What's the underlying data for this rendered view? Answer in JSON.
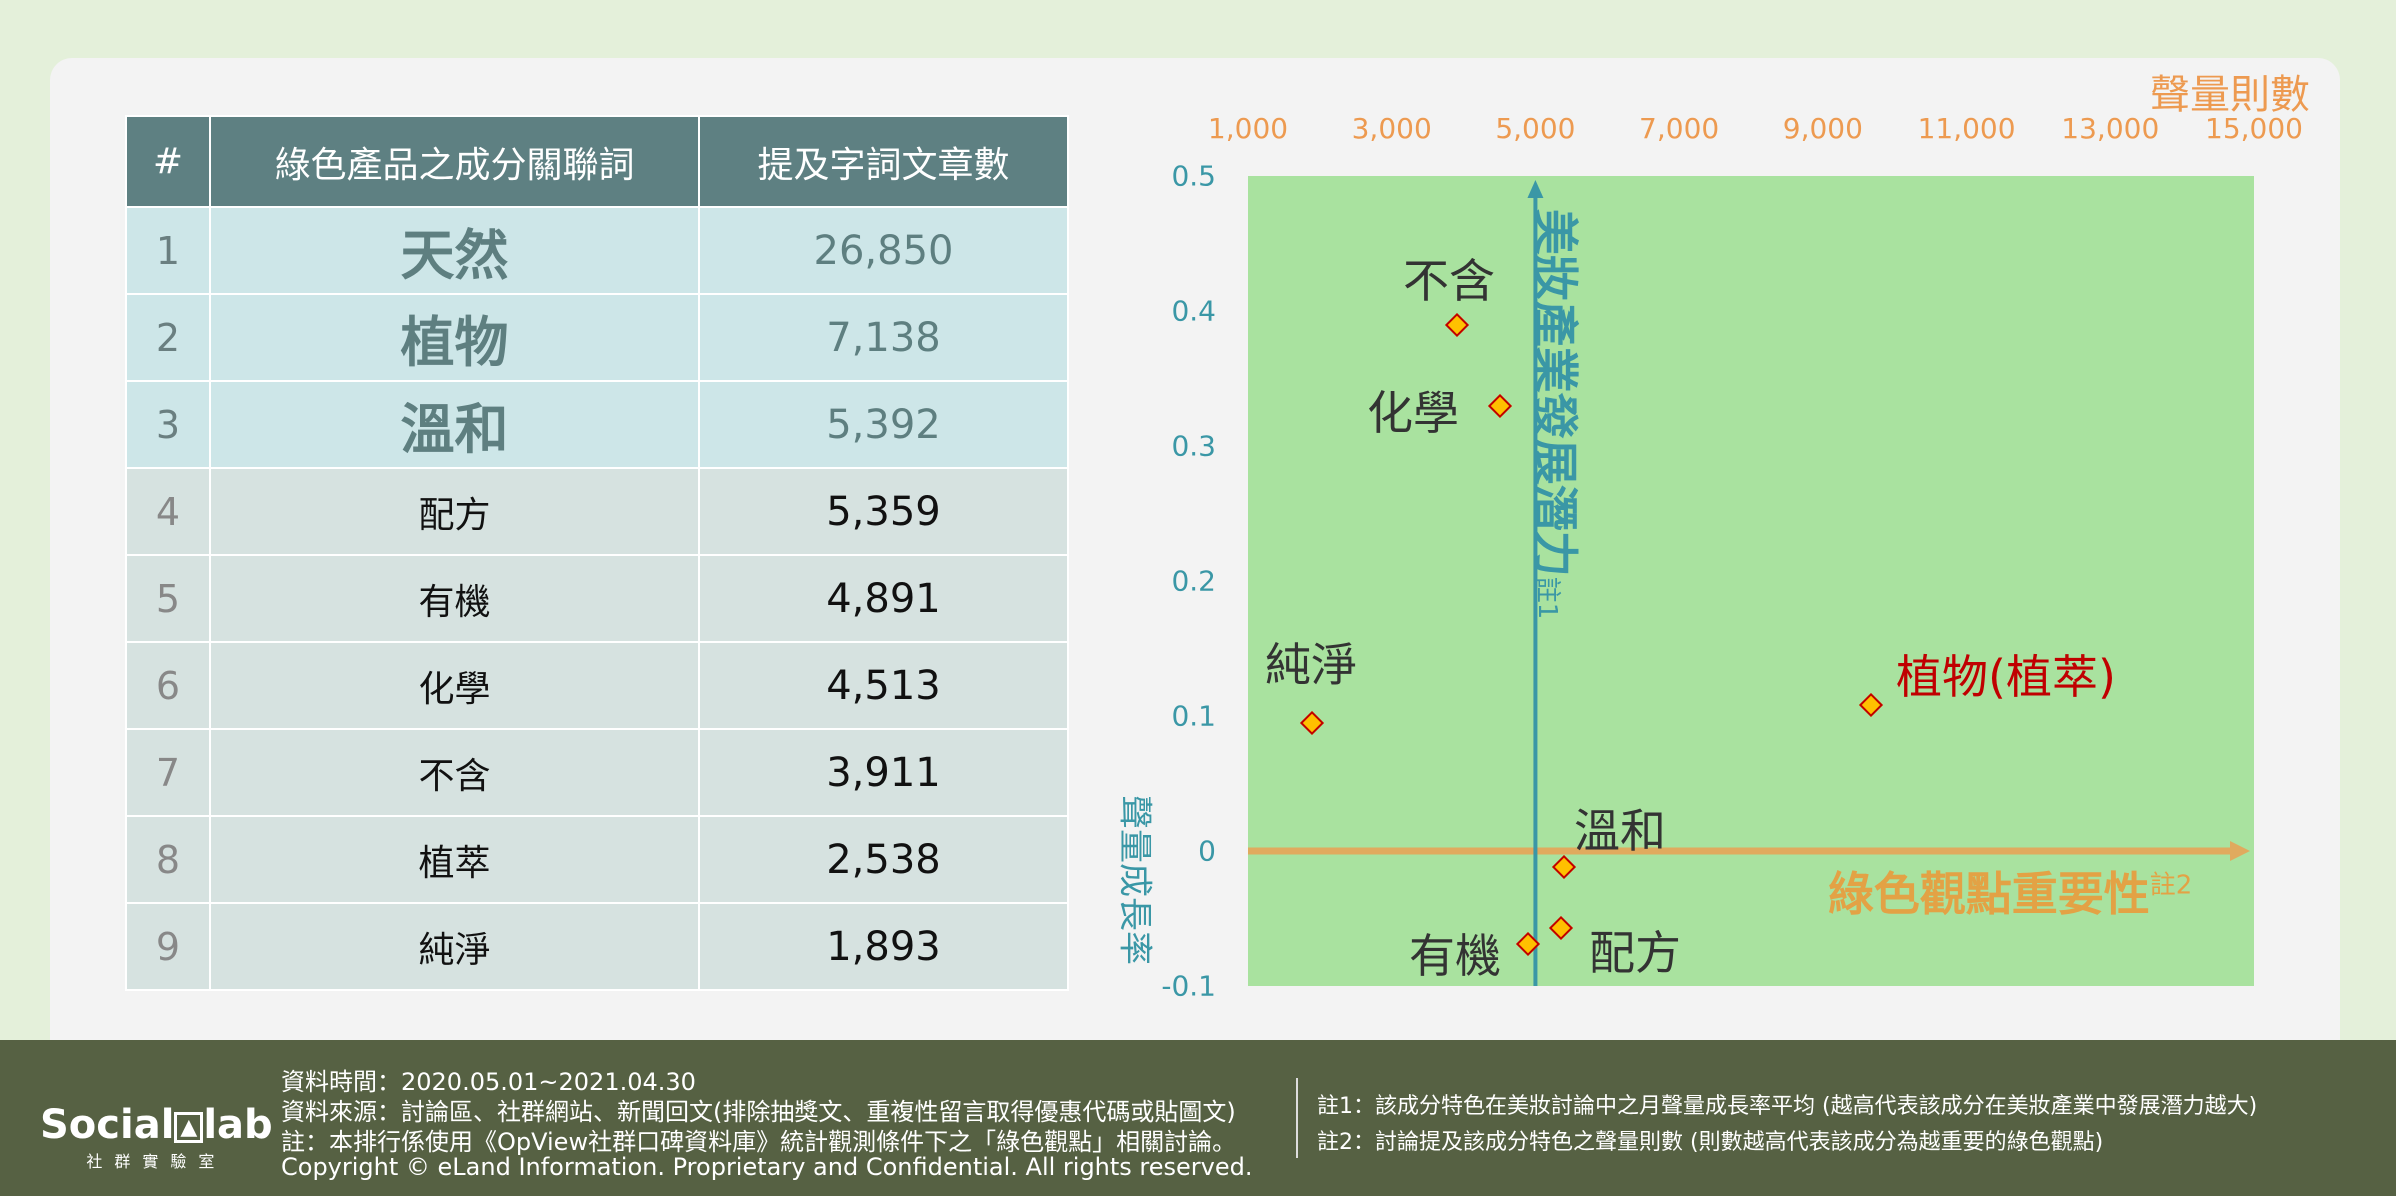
{
  "table": {
    "headers": [
      "#",
      "綠色產品之成分關聯詞",
      "提及字詞文章數"
    ],
    "rows": [
      {
        "rank": "1",
        "term": "天然",
        "count": "26,850"
      },
      {
        "rank": "2",
        "term": "植物",
        "count": "7,138"
      },
      {
        "rank": "3",
        "term": "溫和",
        "count": "5,392"
      },
      {
        "rank": "4",
        "term": "配方",
        "count": "5,359"
      },
      {
        "rank": "5",
        "term": "有機",
        "count": "4,891"
      },
      {
        "rank": "6",
        "term": "化學",
        "count": "4,513"
      },
      {
        "rank": "7",
        "term": "不含",
        "count": "3,911"
      },
      {
        "rank": "8",
        "term": "植萃",
        "count": "2,538"
      },
      {
        "rank": "9",
        "term": "純淨",
        "count": "1,893"
      }
    ]
  },
  "chart_data": {
    "type": "scatter",
    "x_title": "聲量則數",
    "y_title": "聲量成長率",
    "x_axis_title": "綠色觀點重要性",
    "x_axis_note": "註2",
    "y_axis_title": "美妝產業發展潛力",
    "y_axis_note": "註1",
    "xlim": [
      1000,
      15000
    ],
    "ylim": [
      -0.1,
      0.5
    ],
    "x_ticks": [
      "1,000",
      "3,000",
      "5,000",
      "7,000",
      "9,000",
      "11,000",
      "13,000",
      "15,000"
    ],
    "x_tick_values": [
      1000,
      3000,
      5000,
      7000,
      9000,
      11000,
      13000,
      15000
    ],
    "y_ticks": [
      "0.5",
      "0.4",
      "0.3",
      "0.2",
      "0.1",
      "0",
      "-0.1"
    ],
    "y_tick_values": [
      0.5,
      0.4,
      0.3,
      0.2,
      0.1,
      0,
      -0.1
    ],
    "x_crossing": 5000,
    "y_crossing": 0,
    "points": [
      {
        "label": "不含",
        "x": 3911,
        "y": 0.39,
        "color": "#333333"
      },
      {
        "label": "化學",
        "x": 4513,
        "y": 0.33,
        "color": "#333333"
      },
      {
        "label": "純淨",
        "x": 1893,
        "y": 0.095,
        "color": "#333333"
      },
      {
        "label": "植物(植萃)",
        "x": 9676,
        "y": 0.108,
        "color": "#c00000"
      },
      {
        "label": "溫和",
        "x": 5392,
        "y": -0.012,
        "color": "#333333"
      },
      {
        "label": "配方",
        "x": 5359,
        "y": -0.057,
        "color": "#333333"
      },
      {
        "label": "有機",
        "x": 4891,
        "y": -0.069,
        "color": "#333333"
      }
    ]
  },
  "footer": {
    "logo": "SocialLab 社群實驗室",
    "lines": [
      "資料時間：2020.05.01~2021.04.30",
      "資料來源：討論區、社群網站、新聞回文(排除抽獎文、重複性留言取得優惠代碼或貼圖文)",
      "註：本排行係使用《OpView社群口碑資料庫》統計觀測條件下之「綠色觀點」相關討論。",
      "Copyright © eLand Information. Proprietary and Confidential. All rights reserved."
    ],
    "notes": [
      "註1：該成分特色在美妝討論中之月聲量成長率平均 (越高代表該成分在美妝產業中發展潛力越大)",
      "註2：討論提及該成分特色之聲量則數 (則數越高代表該成分為越重要的綠色觀點)"
    ]
  }
}
